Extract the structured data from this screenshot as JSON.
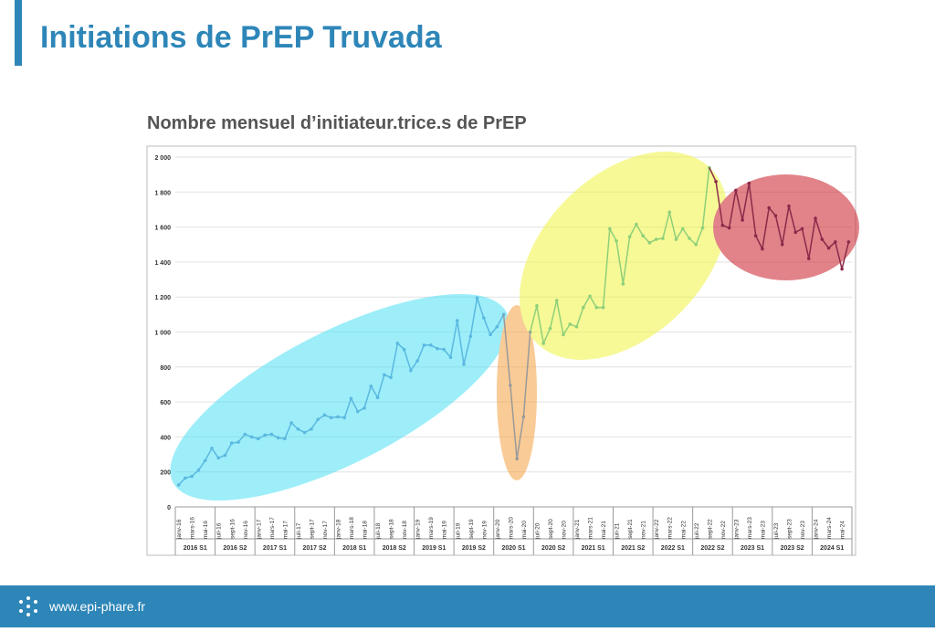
{
  "header": {
    "title": "Initiations de PrEP Truvada"
  },
  "footer": {
    "url": "www.epi-phare.fr"
  },
  "chart_data": {
    "type": "line",
    "title": "Nombre mensuel d’initiateur.trice.s de PrEP",
    "categories": [
      "janv-16",
      null,
      "mars-16",
      null,
      "mai-16",
      null,
      "juil-16",
      null,
      "sept-16",
      null,
      "nov-16",
      null,
      "janv-17",
      null,
      "mars-17",
      null,
      "mai-17",
      null,
      "juil-17",
      null,
      "sept-17",
      null,
      "nov-17",
      null,
      "janv-18",
      null,
      "mars-18",
      null,
      "mai-18",
      null,
      "juil-18",
      null,
      "sept-18",
      null,
      "nov-18",
      null,
      "janv-19",
      null,
      "mars-19",
      null,
      "mai-19",
      null,
      "juil-19",
      null,
      "sept-19",
      null,
      "nov-19",
      null,
      "janv-20",
      null,
      "mars-20",
      null,
      "mai-20",
      null,
      "juil-20",
      null,
      "sept-20",
      null,
      "nov-20",
      null,
      "janv-21",
      null,
      "mars-21",
      null,
      "mai-21",
      null,
      "juil-21",
      null,
      "sept-21",
      null,
      "nov-21",
      null,
      "janv-22",
      null,
      "mars-22",
      null,
      "mai-22",
      null,
      "juil-22",
      null,
      "sept-22",
      null,
      "nov-22",
      null,
      "janv-23",
      null,
      "mars-23",
      null,
      "mai-23",
      null,
      "juil-23",
      null,
      "sept-23",
      null,
      "nov-23",
      null,
      "janv-24",
      null,
      "mars-24",
      null,
      "mai-24",
      null
    ],
    "values": [
      125,
      165,
      175,
      210,
      265,
      335,
      280,
      295,
      365,
      370,
      415,
      400,
      390,
      410,
      415,
      395,
      390,
      480,
      445,
      425,
      445,
      500,
      525,
      510,
      515,
      510,
      620,
      545,
      565,
      690,
      625,
      755,
      740,
      935,
      900,
      780,
      835,
      925,
      925,
      905,
      900,
      855,
      1065,
      815,
      975,
      1195,
      1080,
      985,
      1030,
      1100,
      695,
      275,
      515,
      1000,
      1150,
      935,
      1020,
      1180,
      985,
      1045,
      1030,
      1140,
      1205,
      1140,
      1140,
      1590,
      1520,
      1275,
      1545,
      1615,
      1550,
      1510,
      1530,
      1535,
      1685,
      1530,
      1590,
      1535,
      1500,
      1595,
      1940,
      1860,
      1610,
      1595,
      1810,
      1640,
      1850,
      1550,
      1475,
      1710,
      1665,
      1500,
      1720,
      1570,
      1590,
      1420,
      1650,
      1530,
      1480,
      1515,
      1360,
      1515
    ],
    "segments": [
      {
        "start": 0,
        "color": "#5bb8e0"
      },
      {
        "start": 50,
        "color": "#9a9a9a"
      },
      {
        "start": 54,
        "color": "#8fcf7a"
      },
      {
        "start": 81,
        "color": "#8b2a4a"
      }
    ],
    "groups": [
      "2016 S1",
      "2016 S2",
      "2017 S1",
      "2017 S2",
      "2018 S1",
      "2018 S2",
      "2019 S1",
      "2019 S2",
      "2020 S1",
      "2020 S2",
      "2021 S1",
      "2021 S2",
      "2022 S1",
      "2022 S2",
      "2023 S1",
      "2023 S2",
      "2024 S1"
    ],
    "ylim": [
      0,
      2000
    ],
    "yticks": [
      0,
      200,
      400,
      600,
      800,
      {
        "value": 1000,
        "label": "1 000"
      },
      {
        "value": 1200,
        "label": "1 200"
      },
      {
        "value": 1400,
        "label": "1 400"
      },
      {
        "value": 1600,
        "label": "1 600"
      },
      {
        "value": 1800,
        "label": "1 800"
      },
      {
        "value": 2000,
        "label": "2 000"
      }
    ],
    "grid": true
  }
}
